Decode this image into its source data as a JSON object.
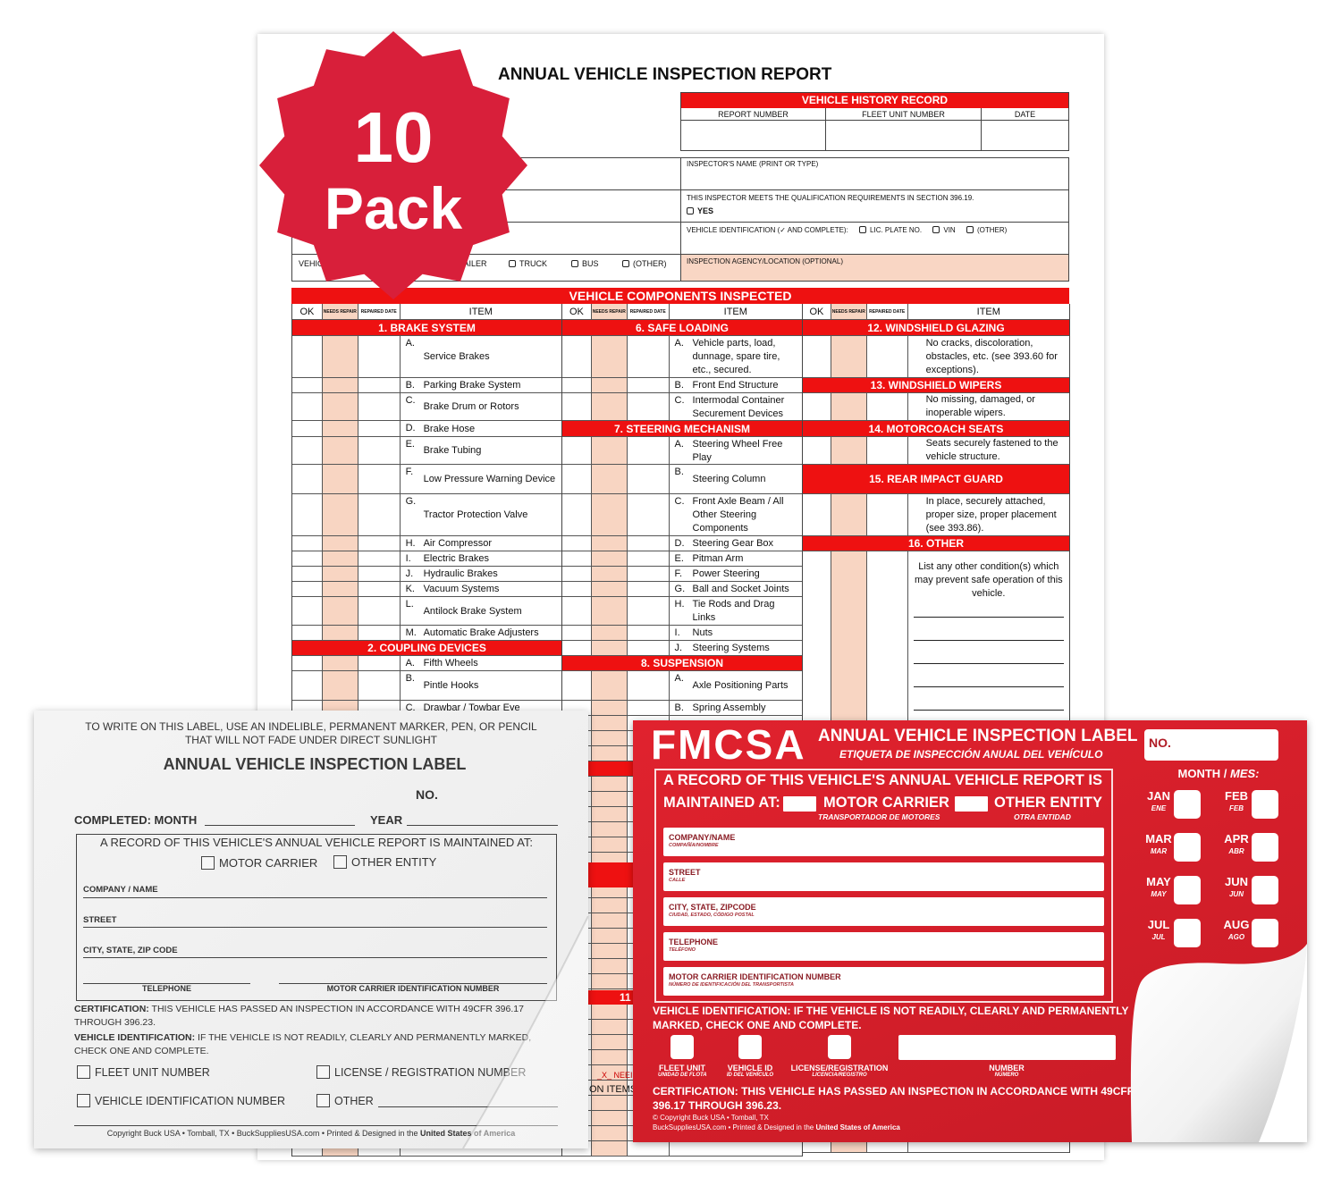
{
  "badge": {
    "number": "10",
    "word": "Pack",
    "color": "#d81f3a"
  },
  "report": {
    "title": "ANNUAL VEHICLE INSPECTION REPORT",
    "history": {
      "title": "VEHICLE HISTORY RECORD",
      "columns": [
        "REPORT NUMBER",
        "FLEET UNIT NUMBER",
        "DATE"
      ]
    },
    "inspector_name": "INSPECTOR'S NAME (PRINT OR TYPE)",
    "qualification": "THIS INSPECTOR MEETS THE QUALIFICATION REQUIREMENTS IN SECTION 396.19.",
    "yes": "YES",
    "vehicle_id": "VEHICLE IDENTIFICATION (✓ AND COMPLETE):",
    "vehicle_id_options": [
      "LIC. PLATE NO.",
      "VIN",
      "(OTHER)"
    ],
    "agency": "INSPECTION AGENCY/LOCATION (OPTIONAL)",
    "vehicle_type_label": "VEHICLE",
    "vehicle_type_partial": "RAILER",
    "vehicle_type_options": [
      "TRUCK",
      "BUS",
      "(OTHER)"
    ],
    "components_title": "VEHICLE COMPONENTS INSPECTED",
    "col_headers": {
      "ok": "OK",
      "needs": "NEEDS REPAIR",
      "repaired": "REPAIRED DATE",
      "item": "ITEM"
    },
    "columns": [
      [
        {
          "h": "1. BRAKE SYSTEM"
        },
        {
          "l": "A.",
          "t": "Service Brakes"
        },
        {
          "l": "B.",
          "t": "Parking Brake System"
        },
        {
          "l": "C.",
          "t": "Brake Drum or Rotors"
        },
        {
          "l": "D.",
          "t": "Brake Hose"
        },
        {
          "l": "E.",
          "t": "Brake Tubing"
        },
        {
          "l": "F.",
          "t": "Low Pressure Warning Device"
        },
        {
          "l": "G.",
          "t": "Tractor Protection Valve"
        },
        {
          "l": "H.",
          "t": "Air Compressor"
        },
        {
          "l": "I.",
          "t": "Electric Brakes"
        },
        {
          "l": "J.",
          "t": "Hydraulic Brakes"
        },
        {
          "l": "K.",
          "t": "Vacuum Systems"
        },
        {
          "l": "L.",
          "t": "Antilock Brake System"
        },
        {
          "l": "M.",
          "t": "Automatic Brake Adjusters"
        },
        {
          "h": "2. COUPLING DEVICES"
        },
        {
          "l": "A.",
          "t": "Fifth Wheels"
        },
        {
          "l": "B.",
          "t": "Pintle Hooks"
        },
        {
          "l": "C.",
          "t": "Drawbar / Towbar Eye"
        }
      ],
      [
        {
          "h": "6. SAFE LOADING"
        },
        {
          "l": "A.",
          "t": "Vehicle parts, load, dunnage, spare tire, etc., secured."
        },
        {
          "l": "B.",
          "t": "Front End Structure"
        },
        {
          "l": "C.",
          "t": "Intermodal Container Securement Devices"
        },
        {
          "h": "7. STEERING MECHANISM"
        },
        {
          "l": "A.",
          "t": "Steering Wheel Free Play"
        },
        {
          "l": "B.",
          "t": "Steering Column"
        },
        {
          "l": "C.",
          "t": "Front Axle Beam / All Other Steering Components"
        },
        {
          "l": "D.",
          "t": "Steering Gear Box"
        },
        {
          "l": "E.",
          "t": "Pitman Arm"
        },
        {
          "l": "F.",
          "t": "Power Steering"
        },
        {
          "l": "G.",
          "t": "Ball and Socket Joints"
        },
        {
          "l": "H.",
          "t": "Tie Rods and Drag Links"
        },
        {
          "l": "I.",
          "t": "Nuts"
        },
        {
          "l": "J.",
          "t": "Steering Systems"
        },
        {
          "h": "8. SUSPENSION"
        },
        {
          "l": "A.",
          "t": "Axle Positioning Parts"
        },
        {
          "l": "B.",
          "t": "Spring Assembly"
        }
      ],
      [
        {
          "h": "12. WINDSHIELD GLAZING"
        },
        {
          "n": "No cracks, discoloration, obstacles, etc. (see 393.60 for exceptions)."
        },
        {
          "h": "13. WINDSHIELD WIPERS"
        },
        {
          "n": "No missing, damaged, or inoperable wipers."
        },
        {
          "h": "14. MOTORCOACH SEATS"
        },
        {
          "n": "Seats securely fastened to the vehicle structure."
        },
        {
          "h": "15. REAR IMPACT GUARD"
        },
        {
          "n": "In place, securely attached, proper size, proper placement (see 393.86)."
        },
        {
          "h": "16. OTHER"
        },
        {
          "n": "List any other condition(s) which may prevent safe operation of this vehicle."
        }
      ]
    ],
    "partial_header": "11",
    "footnote_partial": [
      "_X_ NEEI",
      "ON ITEMS"
    ]
  },
  "white_label": {
    "instructions": [
      "TO WRITE ON THIS LABEL, USE AN INDELIBLE, PERMANENT MARKER, PEN, OR PENCIL",
      "THAT WILL NOT FADE UNDER DIRECT SUNLIGHT"
    ],
    "title": "ANNUAL VEHICLE INSPECTION LABEL",
    "no": "NO.",
    "month": "COMPLETED: MONTH",
    "year": "YEAR",
    "record": "A RECORD OF THIS VEHICLE'S ANNUAL VEHICLE REPORT IS MAINTAINED AT:",
    "motor_carrier": "MOTOR CARRIER",
    "other_entity": "OTHER ENTITY",
    "company": "COMPANY / NAME",
    "street": "STREET",
    "city": "CITY, STATE, ZIP CODE",
    "telephone": "TELEPHONE",
    "mcid": "MOTOR CARRIER IDENTIFICATION NUMBER",
    "cert_bold": "CERTIFICATION:",
    "cert": " THIS VEHICLE HAS PASSED AN INSPECTION IN ACCORDANCE WITH 49CFR 396.17 THROUGH 396.23.",
    "vid_bold": "VEHICLE IDENTIFICATION:",
    "vid": " IF THE VEHICLE IS NOT READILY, CLEARLY AND PERMANENTLY MARKED, CHECK ONE AND COMPLETE.",
    "options": [
      "FLEET UNIT NUMBER",
      "LICENSE / REGISTRATION NUMBER",
      "VEHICLE IDENTIFICATION NUMBER",
      "OTHER"
    ],
    "copyright": "Copyright Buck USA • Tomball, TX • BuckSuppliesUSA.com • Printed & Designed in the ",
    "copyright_bold": "United States of America"
  },
  "red_label": {
    "color": "#d41f2b",
    "logo": "FMCSA",
    "title": "ANNUAL VEHICLE INSPECTION LABEL",
    "title_es": "ETIQUETA DE INSPECCIÓN ANUAL DEL VEHÍCULO",
    "record1": "A RECORD OF THIS VEHICLE'S ANNUAL VEHICLE REPORT IS",
    "record2": "MAINTAINED AT:",
    "motor_carrier": "MOTOR CARRIER",
    "motor_carrier_es": "TRANSPORTADOR DE MOTORES",
    "other_entity": "OTHER ENTITY",
    "other_entity_es": "OTRA ENTIDAD",
    "fields": [
      {
        "en": "COMPANY/NAME",
        "es": "COMPAÑÍA/NOMBRE"
      },
      {
        "en": "STREET",
        "es": "CALLE"
      },
      {
        "en": "CITY, STATE, ZIPCODE",
        "es": "CIUDAD, ESTADO, CÓDIGO POSTAL"
      },
      {
        "en": "TELEPHONE",
        "es": "TELÉFONO"
      },
      {
        "en": "MOTOR CARRIER IDENTIFICATION NUMBER",
        "es": "NÚMERO DE IDENTIFICACIÓN DEL TRANSPORTISTA"
      }
    ],
    "vid1": "VEHICLE IDENTIFICATION: IF THE VEHICLE IS NOT READILY, CLEARLY AND PERMANENTLY",
    "vid2": "MARKED, CHECK ONE AND COMPLETE.",
    "options": [
      {
        "en": "FLEET UNIT",
        "es": "UNIDAD DE FLOTA"
      },
      {
        "en": "VEHICLE ID",
        "es": "ID DEL VEHÍCULO"
      },
      {
        "en": "LICENSE/REGISTRATION",
        "es": "LICENCIA/REGISTRO"
      },
      {
        "en": "NUMBER",
        "es": "NÚMERO"
      }
    ],
    "cert1": "CERTIFICATION: THIS VEHICLE HAS PASSED AN INSPECTION IN ACCORDANCE WITH 49CFR",
    "cert2": "396.17 THROUGH 396.23.",
    "copyright1": "© Copyright Buck USA • Tomball, TX",
    "copyright2": "BuckSuppliesUSA.com • Printed & Designed in the ",
    "copyright2_bold": "United States of America",
    "no": "NO.",
    "month_title": "MONTH / ",
    "month_title_es": "MES:",
    "months": [
      {
        "en": "JAN",
        "es": "ENE"
      },
      {
        "en": "FEB",
        "es": "FEB"
      },
      {
        "en": "MAR",
        "es": "MAR"
      },
      {
        "en": "APR",
        "es": "ABR"
      },
      {
        "en": "MAY",
        "es": "MAY"
      },
      {
        "en": "JUN",
        "es": "JUN"
      },
      {
        "en": "JUL",
        "es": "JUL"
      },
      {
        "en": "AUG",
        "es": "AGO"
      }
    ]
  }
}
